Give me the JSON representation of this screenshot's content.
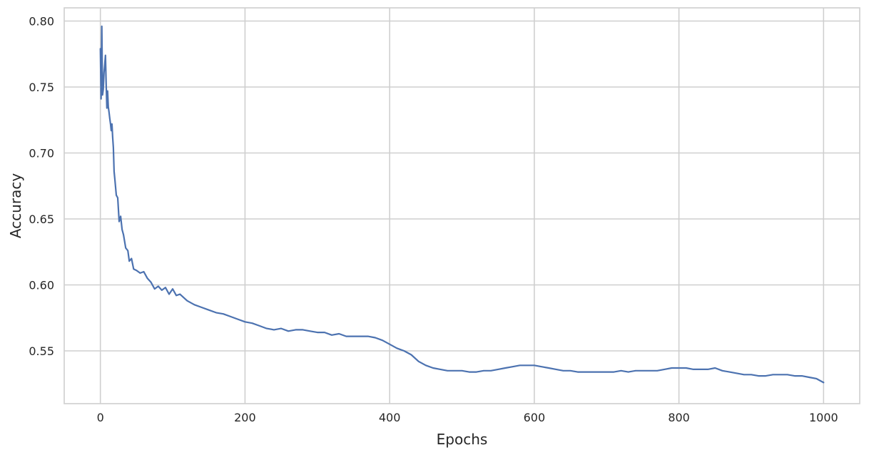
{
  "chart_data": {
    "type": "line",
    "title": "",
    "xlabel": "Epochs",
    "ylabel": "Accuracy",
    "xlim": [
      -50,
      1050
    ],
    "ylim": [
      0.51,
      0.81
    ],
    "xticks": [
      0,
      200,
      400,
      600,
      800,
      1000
    ],
    "yticks": [
      0.55,
      0.6,
      0.65,
      0.7,
      0.75,
      0.8
    ],
    "xtick_labels": [
      "0",
      "200",
      "400",
      "600",
      "800",
      "1000"
    ],
    "ytick_labels": [
      "0.55",
      "0.60",
      "0.65",
      "0.70",
      "0.75",
      "0.80"
    ],
    "grid": true,
    "legend": "none",
    "colors": {
      "line": "#4c72b0",
      "grid": "#cfcfcf",
      "text": "#262626",
      "background": "#ffffff"
    },
    "series": [
      {
        "x": [
          0,
          1,
          2,
          3,
          4,
          5,
          6,
          7,
          8,
          9,
          10,
          11,
          12,
          13,
          14,
          15,
          16,
          17,
          18,
          19,
          20,
          22,
          24,
          26,
          28,
          30,
          32,
          35,
          38,
          40,
          43,
          46,
          50,
          55,
          60,
          65,
          70,
          75,
          80,
          85,
          90,
          95,
          100,
          105,
          110,
          120,
          130,
          140,
          150,
          160,
          170,
          180,
          190,
          200,
          210,
          220,
          230,
          240,
          250,
          260,
          270,
          280,
          290,
          300,
          310,
          320,
          330,
          340,
          350,
          360,
          370,
          380,
          390,
          400,
          410,
          420,
          430,
          440,
          450,
          460,
          470,
          480,
          490,
          500,
          510,
          520,
          530,
          540,
          550,
          560,
          570,
          580,
          590,
          600,
          610,
          620,
          630,
          640,
          650,
          660,
          670,
          680,
          690,
          700,
          710,
          720,
          730,
          740,
          750,
          760,
          770,
          780,
          790,
          800,
          810,
          820,
          830,
          840,
          850,
          860,
          870,
          880,
          890,
          900,
          910,
          920,
          930,
          940,
          950,
          960,
          970,
          980,
          990,
          1000
        ],
        "y": [
          0.779,
          0.741,
          0.796,
          0.744,
          0.748,
          0.761,
          0.767,
          0.774,
          0.752,
          0.734,
          0.747,
          0.735,
          0.731,
          0.726,
          0.722,
          0.717,
          0.722,
          0.712,
          0.704,
          0.686,
          0.68,
          0.668,
          0.666,
          0.648,
          0.652,
          0.642,
          0.638,
          0.628,
          0.626,
          0.618,
          0.62,
          0.612,
          0.611,
          0.609,
          0.61,
          0.605,
          0.602,
          0.597,
          0.599,
          0.596,
          0.598,
          0.593,
          0.597,
          0.592,
          0.593,
          0.588,
          0.585,
          0.583,
          0.581,
          0.579,
          0.578,
          0.576,
          0.574,
          0.572,
          0.571,
          0.569,
          0.567,
          0.566,
          0.567,
          0.565,
          0.566,
          0.566,
          0.565,
          0.564,
          0.564,
          0.562,
          0.563,
          0.561,
          0.561,
          0.561,
          0.561,
          0.56,
          0.558,
          0.555,
          0.552,
          0.55,
          0.547,
          0.542,
          0.539,
          0.537,
          0.536,
          0.535,
          0.535,
          0.535,
          0.534,
          0.534,
          0.535,
          0.535,
          0.536,
          0.537,
          0.538,
          0.539,
          0.539,
          0.539,
          0.538,
          0.537,
          0.536,
          0.535,
          0.535,
          0.534,
          0.534,
          0.534,
          0.534,
          0.534,
          0.534,
          0.535,
          0.534,
          0.535,
          0.535,
          0.535,
          0.535,
          0.536,
          0.537,
          0.537,
          0.537,
          0.536,
          0.536,
          0.536,
          0.537,
          0.535,
          0.534,
          0.533,
          0.532,
          0.532,
          0.531,
          0.531,
          0.532,
          0.532,
          0.532,
          0.531,
          0.531,
          0.53,
          0.529,
          0.526
        ]
      }
    ]
  }
}
